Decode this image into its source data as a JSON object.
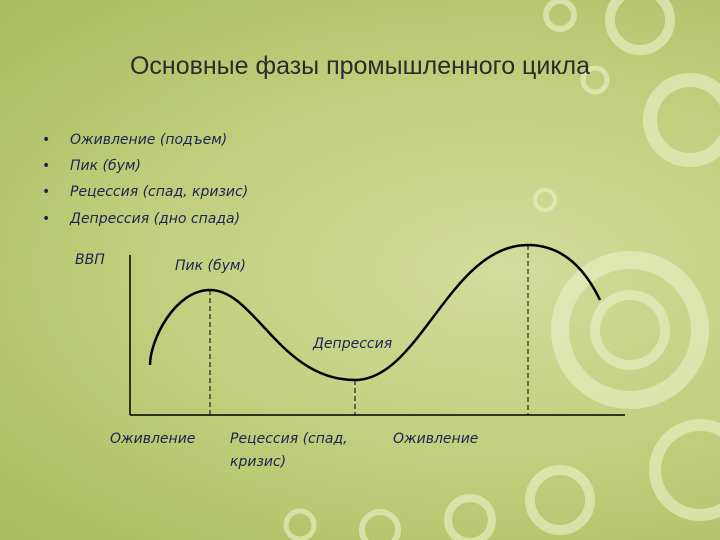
{
  "header": {
    "title": "Основные фазы промышленного цикла"
  },
  "bullets": [
    "Оживление (подъем)",
    "Пик (бум)",
    "Рецессия (спад, кризис)",
    "Депрессия (дно спада)"
  ],
  "diagram": {
    "y_axis_label": "ВВП",
    "peak_label": "Пик (бум)",
    "depression_label": "Депрессия",
    "phase_labels": {
      "recovery_1": "Оживление",
      "recession": [
        "Рецессия (спад,",
        "кризис)"
      ],
      "recovery_2": "Оживление"
    }
  }
}
